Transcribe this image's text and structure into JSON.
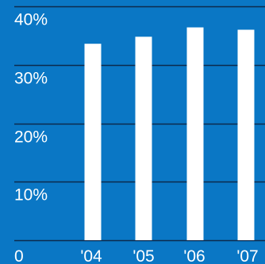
{
  "chart_data": {
    "type": "bar",
    "categories": [
      "'04",
      "'05",
      "'06",
      "'07"
    ],
    "values": [
      33.6,
      34.8,
      36.4,
      36.0
    ],
    "title": "",
    "xlabel": "",
    "ylabel": "",
    "ylim": [
      0,
      40
    ],
    "yticks": [
      0,
      10,
      20,
      30,
      40
    ],
    "ytick_labels": [
      "0",
      "10%",
      "20%",
      "30%",
      "40%"
    ],
    "grid": true,
    "legend": "none"
  },
  "colors": {
    "background": "#0a77c5",
    "bar": "#ffffff",
    "grid": "#0d2a4d",
    "text": "#ffffff"
  }
}
